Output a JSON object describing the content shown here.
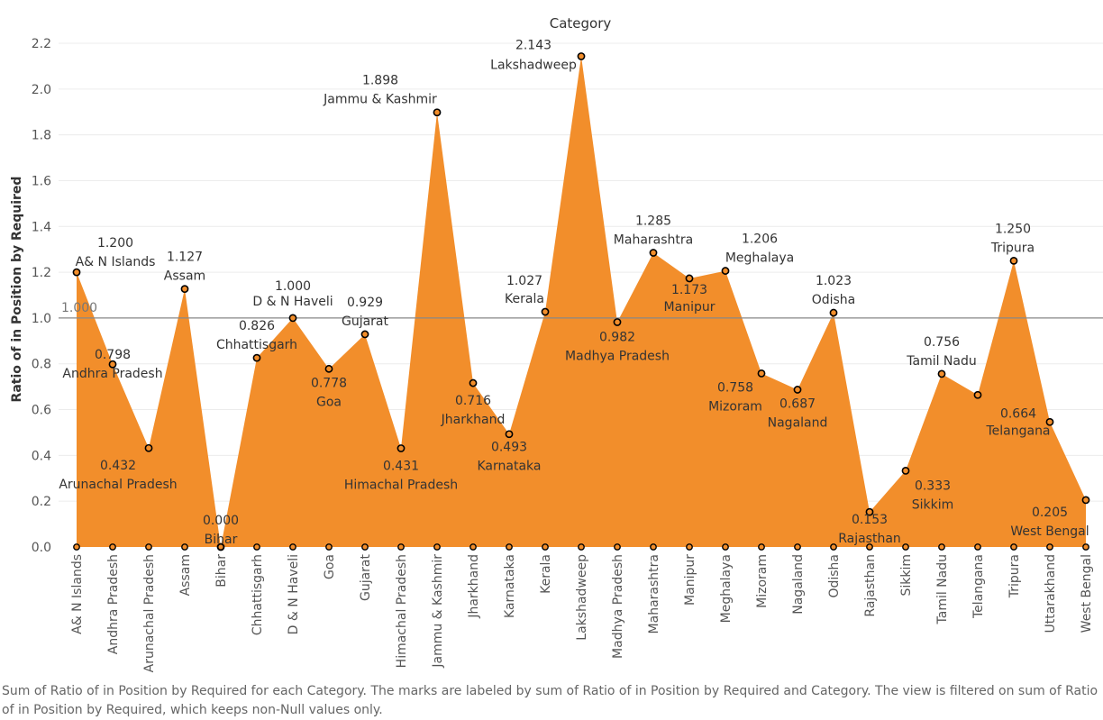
{
  "chart_data": {
    "type": "area",
    "title": "Category",
    "ylabel": "Ratio of in Position by Required",
    "ylim": [
      0,
      2.2
    ],
    "yticks": [
      "0.0",
      "0.2",
      "0.4",
      "0.6",
      "0.8",
      "1.0",
      "1.2",
      "1.4",
      "1.6",
      "1.8",
      "2.0",
      "2.2"
    ],
    "reference_line": {
      "value": 1.0,
      "label": "1.000"
    },
    "grid": true,
    "categories": [
      "A& N Islands",
      "Andhra Pradesh",
      "Arunachal Pradesh",
      "Assam",
      "Bihar",
      "Chhattisgarh",
      "D & N Haveli",
      "Goa",
      "Gujarat",
      "Himachal Pradesh",
      "Jammu & Kashmir",
      "Jharkhand",
      "Karnataka",
      "Kerala",
      "Lakshadweep",
      "Madhya Pradesh",
      "Maharashtra",
      "Manipur",
      "Meghalaya",
      "Mizoram",
      "Nagaland",
      "Odisha",
      "Rajasthan",
      "Sikkim",
      "Tamil Nadu",
      "Telangana",
      "Tripura",
      "Uttarakhand",
      "West Bengal"
    ],
    "values": [
      1.2,
      0.798,
      0.432,
      1.127,
      0.0,
      0.826,
      1.0,
      0.778,
      0.929,
      0.431,
      1.898,
      0.716,
      0.493,
      1.027,
      2.143,
      0.982,
      1.285,
      1.173,
      1.206,
      0.758,
      0.687,
      1.023,
      0.153,
      0.333,
      0.756,
      0.664,
      1.25,
      0.546,
      0.205
    ],
    "value_labels": [
      "1.200",
      "0.798",
      "0.432",
      "1.127",
      "0.000",
      "0.826",
      "1.000",
      "0.778",
      "0.929",
      "0.431",
      "1.898",
      "0.716",
      "0.493",
      "1.027",
      "2.143",
      "0.982",
      "1.285",
      "1.173",
      "1.206",
      "0.758",
      "0.687",
      "1.023",
      "0.153",
      "0.333",
      "0.756",
      "0.664",
      "1.250",
      "",
      "0.205"
    ],
    "point_labels": [
      "A& N Islands",
      "Andhra Pradesh",
      "Arunachal Pradesh",
      "Assam",
      "Bihar",
      "Chhattisgarh",
      "D & N Haveli",
      "Goa",
      "Gujarat",
      "Himachal Pradesh",
      "Jammu & Kashmir",
      "Jharkhand",
      "Karnataka",
      "Kerala",
      "Lakshadweep",
      "Madhya Pradesh",
      "Maharashtra",
      "Manipur",
      "Meghalaya",
      "Mizoram",
      "Nagaland",
      "Odisha",
      "Rajasthan",
      "Sikkim",
      "Tamil Nadu",
      "Telangana",
      "Tripura",
      "",
      "West Bengal"
    ],
    "colors": {
      "area": "#f28e2b",
      "marker_stroke": "#000000",
      "grid": "#ececec",
      "reference": "#888888"
    }
  },
  "caption": "Sum of Ratio of in Position by Required for each Category.  The marks are labeled by sum of Ratio of in Position by Required and Category. The view is filtered on sum of Ratio of in Position by Required, which keeps non-Null values only."
}
